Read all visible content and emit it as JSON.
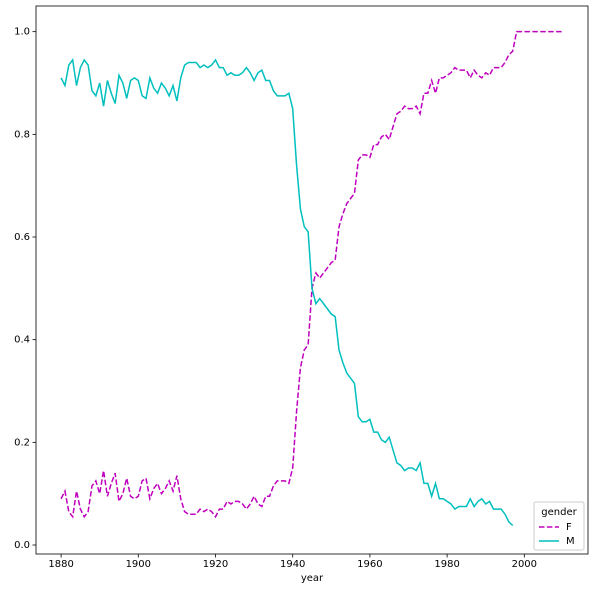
{
  "chart_data": {
    "type": "line",
    "x": [
      1880,
      1881,
      1882,
      1883,
      1884,
      1885,
      1886,
      1887,
      1888,
      1889,
      1890,
      1891,
      1892,
      1893,
      1894,
      1895,
      1896,
      1897,
      1898,
      1899,
      1900,
      1901,
      1902,
      1903,
      1904,
      1905,
      1906,
      1907,
      1908,
      1909,
      1910,
      1911,
      1912,
      1913,
      1914,
      1915,
      1916,
      1917,
      1918,
      1919,
      1920,
      1921,
      1922,
      1923,
      1924,
      1925,
      1926,
      1927,
      1928,
      1929,
      1930,
      1931,
      1932,
      1933,
      1934,
      1935,
      1936,
      1937,
      1938,
      1939,
      1940,
      1941,
      1942,
      1943,
      1944,
      1945,
      1946,
      1947,
      1948,
      1949,
      1950,
      1951,
      1952,
      1953,
      1954,
      1955,
      1956,
      1957,
      1958,
      1959,
      1960,
      1961,
      1962,
      1963,
      1964,
      1965,
      1966,
      1967,
      1968,
      1969,
      1970,
      1971,
      1972,
      1973,
      1974,
      1975,
      1976,
      1977,
      1978,
      1979,
      1980,
      1981,
      1982,
      1983,
      1984,
      1985,
      1986,
      1987,
      1988,
      1989,
      1990,
      1991,
      1992,
      1993,
      1994,
      1995,
      1996,
      1997,
      1998,
      1999,
      2000,
      2001,
      2002,
      2003,
      2004,
      2005,
      2006,
      2007,
      2008,
      2009,
      2010
    ],
    "series": [
      {
        "name": "F",
        "color": "#bf00bf",
        "dash": true,
        "values": [
          0.09,
          0.105,
          0.065,
          0.055,
          0.105,
          0.07,
          0.055,
          0.065,
          0.115,
          0.125,
          0.1,
          0.145,
          0.095,
          0.12,
          0.14,
          0.085,
          0.1,
          0.13,
          0.095,
          0.09,
          0.095,
          0.125,
          0.13,
          0.09,
          0.11,
          0.12,
          0.1,
          0.11,
          0.125,
          0.105,
          0.135,
          0.09,
          0.065,
          0.06,
          0.06,
          0.06,
          0.07,
          0.065,
          0.07,
          0.065,
          0.055,
          0.07,
          0.07,
          0.085,
          0.08,
          0.085,
          0.085,
          0.08,
          0.07,
          0.08,
          0.095,
          0.08,
          0.075,
          0.095,
          0.095,
          0.115,
          0.125,
          0.125,
          0.125,
          0.12,
          0.15,
          0.26,
          0.345,
          0.38,
          0.39,
          0.5,
          0.53,
          0.52,
          0.53,
          0.54,
          0.55,
          0.555,
          0.62,
          0.645,
          0.665,
          0.675,
          0.685,
          0.75,
          0.76,
          0.76,
          0.755,
          0.78,
          0.78,
          0.795,
          0.8,
          0.79,
          0.815,
          0.84,
          0.845,
          0.855,
          0.85,
          0.85,
          0.855,
          0.84,
          0.88,
          0.88,
          0.905,
          0.88,
          0.91,
          0.91,
          0.915,
          0.92,
          0.93,
          0.925,
          0.925,
          0.925,
          0.91,
          0.925,
          0.915,
          0.91,
          0.92,
          0.915,
          0.93,
          0.93,
          0.93,
          0.94,
          0.955,
          0.962,
          1,
          1,
          1,
          1,
          1,
          1,
          1,
          1,
          1,
          1,
          1,
          1,
          1
        ]
      },
      {
        "name": "M",
        "color": "#00bfbf",
        "dash": false,
        "values": [
          0.91,
          0.895,
          0.935,
          0.945,
          0.895,
          0.93,
          0.945,
          0.935,
          0.885,
          0.875,
          0.9,
          0.855,
          0.905,
          0.88,
          0.86,
          0.915,
          0.9,
          0.87,
          0.905,
          0.91,
          0.905,
          0.875,
          0.87,
          0.91,
          0.89,
          0.88,
          0.9,
          0.89,
          0.875,
          0.895,
          0.865,
          0.91,
          0.935,
          0.94,
          0.94,
          0.94,
          0.93,
          0.935,
          0.93,
          0.935,
          0.945,
          0.93,
          0.93,
          0.915,
          0.92,
          0.915,
          0.915,
          0.92,
          0.93,
          0.92,
          0.905,
          0.92,
          0.925,
          0.905,
          0.905,
          0.885,
          0.875,
          0.875,
          0.875,
          0.88,
          0.85,
          0.74,
          0.655,
          0.62,
          0.61,
          0.5,
          0.47,
          0.48,
          0.47,
          0.46,
          0.45,
          0.445,
          0.38,
          0.355,
          0.335,
          0.325,
          0.315,
          0.25,
          0.24,
          0.24,
          0.245,
          0.22,
          0.22,
          0.205,
          0.2,
          0.21,
          0.185,
          0.16,
          0.155,
          0.145,
          0.15,
          0.15,
          0.145,
          0.16,
          0.12,
          0.12,
          0.095,
          0.12,
          0.09,
          0.09,
          0.085,
          0.08,
          0.07,
          0.075,
          0.075,
          0.075,
          0.09,
          0.075,
          0.085,
          0.09,
          0.08,
          0.085,
          0.07,
          0.07,
          0.07,
          0.06,
          0.045,
          0.038,
          null,
          null,
          null,
          null,
          null,
          null,
          null,
          null,
          null,
          null,
          null,
          null,
          null
        ]
      }
    ],
    "xlabel": "year",
    "legend_title": "gender",
    "legend": "lower right",
    "xlim": [
      1873.5,
      2016.5
    ],
    "ylim": [
      -0.0175,
      1.05
    ],
    "xticks": [
      1880,
      1900,
      1920,
      1940,
      1960,
      1980,
      2000
    ],
    "yticks": [
      {
        "value": 0,
        "label": "0.0"
      },
      {
        "value": 0.2,
        "label": "0.2"
      },
      {
        "value": 0.4,
        "label": "0.4"
      },
      {
        "value": 0.6,
        "label": "0.6"
      },
      {
        "value": 0.8,
        "label": "0.8"
      },
      {
        "value": 1,
        "label": "1.0"
      }
    ]
  }
}
